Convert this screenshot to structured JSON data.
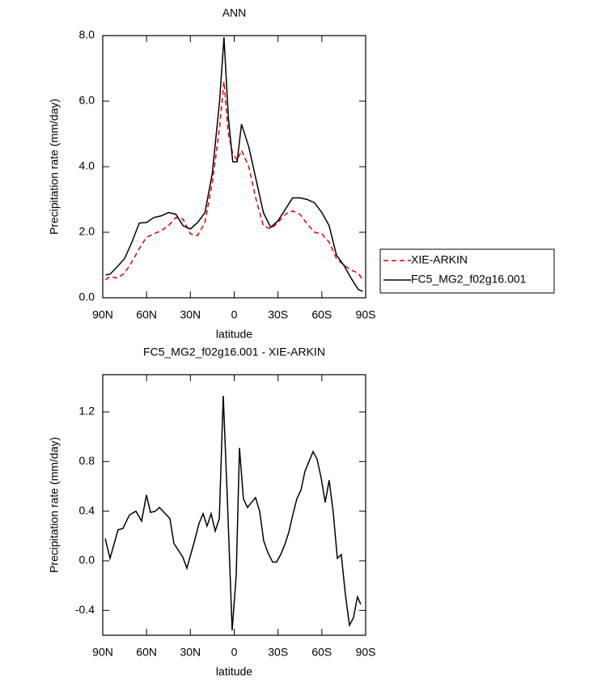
{
  "chart_data": [
    {
      "type": "line",
      "title": "ANN",
      "x_label": "latitude",
      "y_label": "Precipitation rate (mm/day)",
      "x": [
        88,
        85,
        80,
        75,
        70,
        65,
        60,
        55,
        50,
        45,
        40,
        35,
        30,
        25,
        20,
        15,
        10,
        7,
        4,
        1,
        -2,
        -5,
        -10,
        -15,
        -20,
        -25,
        -30,
        -35,
        -40,
        -45,
        -50,
        -55,
        -60,
        -65,
        -70,
        -75,
        -80,
        -85,
        -88
      ],
      "series": [
        {
          "name": "XIE-ARKIN",
          "color": "#e00000",
          "dash": "dashed",
          "values": [
            0.55,
            0.65,
            0.6,
            0.75,
            1.1,
            1.5,
            1.85,
            1.95,
            2.05,
            2.2,
            2.45,
            2.4,
            1.95,
            1.9,
            2.3,
            3.5,
            5.2,
            6.6,
            5.0,
            4.4,
            4.2,
            4.5,
            4.0,
            3.0,
            2.2,
            2.1,
            2.3,
            2.55,
            2.65,
            2.55,
            2.25,
            2.0,
            1.95,
            1.7,
            1.2,
            1.0,
            0.85,
            0.75,
            0.55
          ]
        },
        {
          "name": "FC5_MG2_f02g16.001",
          "color": "#000000",
          "dash": "solid",
          "values": [
            0.7,
            0.72,
            0.95,
            1.2,
            1.7,
            2.28,
            2.3,
            2.45,
            2.5,
            2.6,
            2.55,
            2.2,
            2.1,
            2.3,
            2.6,
            3.8,
            6.0,
            7.95,
            5.5,
            4.15,
            4.15,
            5.3,
            4.6,
            3.6,
            2.6,
            2.15,
            2.35,
            2.7,
            3.05,
            3.05,
            3.0,
            2.9,
            2.6,
            2.2,
            1.3,
            1.0,
            0.6,
            0.25,
            0.2
          ]
        }
      ],
      "xlim": [
        90,
        -90
      ],
      "xticks": [
        {
          "value": 90,
          "label": "90N"
        },
        {
          "value": 60,
          "label": "60N"
        },
        {
          "value": 30,
          "label": "30N"
        },
        0,
        {
          "value": -30,
          "label": "30S"
        },
        {
          "value": -60,
          "label": "60S"
        },
        {
          "value": -90,
          "label": "90S"
        }
      ],
      "ylim": [
        0,
        8
      ],
      "yticks": [
        {
          "value": 0,
          "label": "0.0"
        },
        {
          "value": 2,
          "label": "2.0"
        },
        {
          "value": 4,
          "label": "4.0"
        },
        {
          "value": 6,
          "label": "6.0"
        },
        {
          "value": 8,
          "label": "8.0"
        }
      ],
      "legend": "right"
    },
    {
      "type": "line",
      "title": "FC5_MG2_f02g16.001 - XIE-ARKIN",
      "x_label": "latitude",
      "y_label": "Precipitation rate (mm/day)",
      "x": [
        88.3,
        85,
        79.5,
        76.2,
        71.7,
        67.3,
        63.4,
        60.1,
        57.3,
        54,
        51.2,
        44,
        41.3,
        35.2,
        32.4,
        27.4,
        24.1,
        21.3,
        18.6,
        15.8,
        13,
        10.2,
        7.5,
        4.7,
        1.4,
        -1.4,
        -3.6,
        -6.3,
        -9.1,
        -14.6,
        -17.4,
        -20.2,
        -22.9,
        -26.3,
        -29,
        -31.8,
        -34.6,
        -37.4,
        -40.1,
        -42.9,
        -45.7,
        -48.4,
        -51.2,
        -54,
        -56.7,
        -59.5,
        -62.3,
        -65,
        -67.8,
        -70.6,
        -73.3,
        -76.1,
        -78.9,
        -81.6,
        -84.4,
        -86.6
      ],
      "series": [
        {
          "color": "#000000",
          "dash": "solid",
          "values": [
            0.18,
            0.02,
            0.25,
            0.26,
            0.37,
            0.4,
            0.32,
            0.53,
            0.39,
            0.4,
            0.43,
            0.34,
            0.14,
            0.03,
            -0.06,
            0.15,
            0.3,
            0.38,
            0.28,
            0.38,
            0.24,
            0.34,
            1.33,
            0.5,
            -0.56,
            -0.11,
            0.91,
            0.5,
            0.43,
            0.51,
            0.4,
            0.16,
            0.07,
            -0.01,
            -0.01,
            0.05,
            0.13,
            0.23,
            0.37,
            0.5,
            0.57,
            0.72,
            0.8,
            0.88,
            0.82,
            0.67,
            0.47,
            0.65,
            0.39,
            0.02,
            0.05,
            -0.27,
            -0.52,
            -0.46,
            -0.29,
            -0.35
          ]
        }
      ],
      "xlim": [
        90,
        -90
      ],
      "xticks": [
        {
          "value": 90,
          "label": "90N"
        },
        {
          "value": 60,
          "label": "60N"
        },
        {
          "value": 30,
          "label": "30N"
        },
        0,
        {
          "value": -30,
          "label": "30S"
        },
        {
          "value": -60,
          "label": "60S"
        },
        {
          "value": -90,
          "label": "90S"
        }
      ],
      "ylim": [
        -0.6,
        1.5
      ],
      "yticks": [
        -0.4,
        {
          "value": 0,
          "label": "0.0"
        },
        0.4,
        0.8,
        1.2
      ]
    }
  ]
}
